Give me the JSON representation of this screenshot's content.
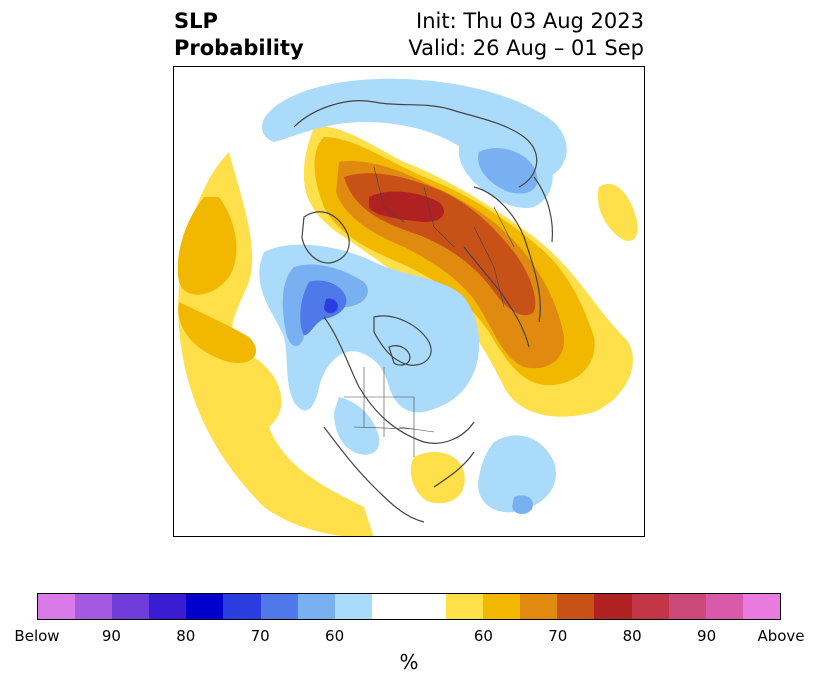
{
  "header": {
    "title_line1": "SLP",
    "title_line2": "Probability",
    "init_text": "Init: Thu 03 Aug 2023",
    "valid_text": "Valid: 26 Aug – 01 Sep"
  },
  "colorbar": {
    "unit": "%",
    "segments": [
      "#d97ae8",
      "#a35ae0",
      "#6f3dd9",
      "#3a1cd3",
      "#0000cc",
      "#2a3ee0",
      "#4f79e8",
      "#79b0f2",
      "#aadbfa",
      "#ffffff",
      "#ffffff",
      "#ffe04a",
      "#f2b800",
      "#e08b10",
      "#c85118",
      "#b02222",
      "#c23648",
      "#cc4a7a",
      "#d95aa8",
      "#e87ae0"
    ],
    "labels": [
      "Below",
      "90",
      "80",
      "70",
      "60",
      "60",
      "70",
      "80",
      "90",
      "Above"
    ],
    "colors": {
      "below_light": "#aadbfa",
      "below_mid": "#79b0f2",
      "below_strong": "#4f79e8",
      "below_deep": "#2a3ee0",
      "above_light": "#ffe04a",
      "above_mid": "#f2b800",
      "above_strong": "#e08b10",
      "above_deep": "#c85118",
      "above_max": "#b02222"
    }
  }
}
